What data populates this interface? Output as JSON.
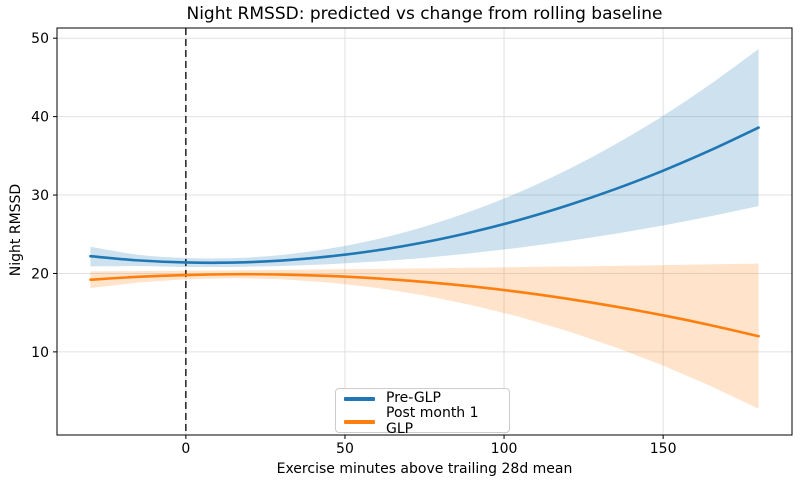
{
  "figure": {
    "background": "#ffffff"
  },
  "chart_data": {
    "type": "line",
    "title": "Night RMSSD: predicted vs change from rolling baseline",
    "xlabel": "Exercise minutes above trailing 28d mean",
    "ylabel": "Night RMSSD",
    "xlim": [
      -40.5,
      190.5
    ],
    "ylim": [
      -0.6,
      51.3
    ],
    "xticks": [
      0,
      50,
      100,
      150
    ],
    "yticks": [
      10,
      20,
      30,
      40,
      50
    ],
    "grid": true,
    "grid_color": "#e0e0e0",
    "spine_color": "#000000",
    "vline": {
      "x": 0,
      "style": "dashed",
      "color": "#000000"
    },
    "x": [
      -30,
      -15,
      0,
      15,
      30,
      45,
      60,
      75,
      90,
      105,
      120,
      135,
      150,
      165,
      180
    ],
    "series": [
      {
        "name": "Pre-GLP",
        "color": "#1f77b4",
        "band_alpha": 0.22,
        "values": [
          22.2,
          21.67,
          21.4,
          21.39,
          21.65,
          22.17,
          22.94,
          23.98,
          25.29,
          26.85,
          28.68,
          30.76,
          33.11,
          35.73,
          38.6
        ],
        "ci_lo": [
          20.9,
          20.95,
          20.83,
          20.82,
          20.95,
          21.18,
          21.52,
          21.99,
          22.59,
          23.29,
          24.12,
          25.06,
          26.11,
          27.29,
          28.58
        ],
        "ci_hi": [
          23.4,
          22.39,
          21.97,
          21.96,
          22.35,
          23.16,
          24.36,
          25.97,
          27.99,
          30.41,
          33.24,
          36.48,
          40.11,
          44.17,
          48.62
        ]
      },
      {
        "name": "Post month 1 GLP",
        "color": "#ff7f0e",
        "band_alpha": 0.22,
        "values": [
          19.2,
          19.57,
          19.8,
          19.9,
          19.86,
          19.68,
          19.37,
          18.92,
          18.34,
          17.63,
          16.77,
          15.78,
          14.66,
          13.4,
          12.0
        ],
        "ci_lo": [
          18.15,
          18.84,
          19.26,
          19.4,
          19.26,
          18.84,
          18.16,
          17.19,
          15.95,
          14.45,
          12.65,
          10.59,
          8.26,
          5.64,
          2.75
        ],
        "ci_hi": [
          20.25,
          20.3,
          20.34,
          20.4,
          20.46,
          20.52,
          20.58,
          20.65,
          20.73,
          20.81,
          20.89,
          20.97,
          21.06,
          21.16,
          21.25
        ]
      }
    ],
    "legend": {
      "position": "lower center",
      "entries": [
        "Pre-GLP",
        "Post month 1 GLP"
      ]
    }
  }
}
